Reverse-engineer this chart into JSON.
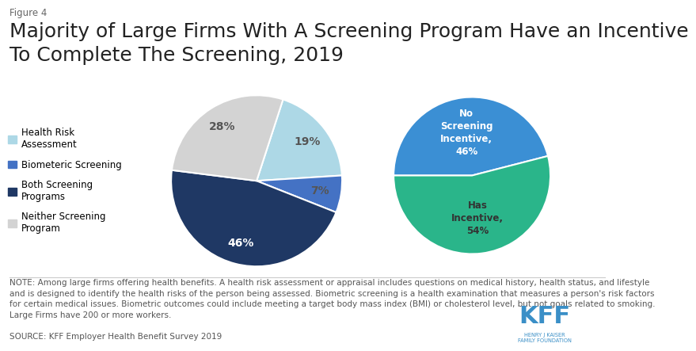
{
  "figure_label": "Figure 4",
  "title": "Majority of Large Firms With A Screening Program Have an Incentive\nTo Complete The Screening, 2019",
  "pie1": {
    "values": [
      19,
      7,
      46,
      28
    ],
    "labels": [
      "19%",
      "7%",
      "46%",
      "28%"
    ],
    "colors": [
      "#add8e6",
      "#4472c4",
      "#1f3864",
      "#d3d3d3"
    ],
    "legend_labels": [
      "Health Risk\nAssessment",
      "Biometeric Screening",
      "Both Screening\nPrograms",
      "Neither Screening\nProgram"
    ],
    "startangle": 72
  },
  "pie2": {
    "values": [
      46,
      54
    ],
    "labels": [
      "No\nScreening\nIncentive,\n46%",
      "Has\nIncentive,\n54%"
    ],
    "colors": [
      "#3b8fd4",
      "#2ab58a"
    ],
    "startangle": 180
  },
  "note": "NOTE: Among large firms offering health benefits. A health risk assessment or appraisal includes questions on medical history, health status, and lifestyle\nand is designed to identify the health risks of the person being assessed. Biometric screening is a health examination that measures a person's risk factors\nfor certain medical issues. Biometric outcomes could include meeting a target body mass index (BMI) or cholesterol level, but not goals related to smoking.\nLarge Firms have 200 or more workers.",
  "source": "SOURCE: KFF Employer Health Benefit Survey 2019",
  "bg_color": "#ffffff",
  "title_fontsize": 18,
  "note_fontsize": 7.5
}
